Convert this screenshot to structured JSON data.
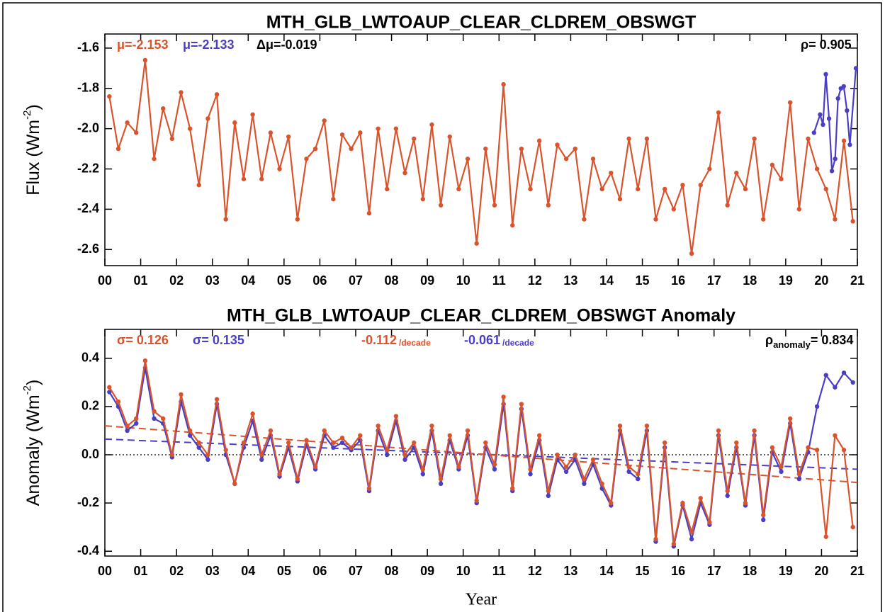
{
  "chart_data": [
    {
      "type": "line",
      "title": "MTH_GLB_LWTOAUP_CLEAR_CLDREM_OBSWGT",
      "ylabel": {
        "text": "Flux (Wm",
        "sup": "-2",
        "end": ")"
      },
      "xlim": [
        0,
        21
      ],
      "ylim": [
        -2.68,
        -1.53
      ],
      "xticks": [
        {
          "value": 0,
          "label": "00"
        },
        {
          "value": 1,
          "label": "01"
        },
        {
          "value": 2,
          "label": "02"
        },
        {
          "value": 3,
          "label": "03"
        },
        {
          "value": 4,
          "label": "04"
        },
        {
          "value": 5,
          "label": "05"
        },
        {
          "value": 6,
          "label": "06"
        },
        {
          "value": 7,
          "label": "07"
        },
        {
          "value": 8,
          "label": "08"
        },
        {
          "value": 9,
          "label": "09"
        },
        {
          "value": 10,
          "label": "10"
        },
        {
          "value": 11,
          "label": "11"
        },
        {
          "value": 12,
          "label": "12"
        },
        {
          "value": 13,
          "label": "13"
        },
        {
          "value": 14,
          "label": "14"
        },
        {
          "value": 15,
          "label": "15"
        },
        {
          "value": 16,
          "label": "16"
        },
        {
          "value": 17,
          "label": "17"
        },
        {
          "value": 18,
          "label": "18"
        },
        {
          "value": 19,
          "label": "19"
        },
        {
          "value": 20,
          "label": "20"
        },
        {
          "value": 21,
          "label": "21"
        }
      ],
      "yticks": [
        -2.6,
        -2.4,
        -2.2,
        {
          "value": -2.0,
          "label": "-2.0"
        },
        -1.8,
        -1.6
      ],
      "annotations": [
        {
          "text": "μ=-2.153",
          "color": "#d9542c"
        },
        {
          "text": "μ=-2.133",
          "color": "#4a3fc4"
        },
        {
          "text": "Δμ=-0.019",
          "color": "#000000"
        },
        {
          "text": "ρ= 0.905",
          "color": "#000000"
        }
      ],
      "series": [
        {
          "color": "#4a3fc4",
          "markers": true,
          "x": [
            19.79,
            19.96,
            20.04,
            20.12,
            20.21,
            20.29,
            20.38,
            20.46,
            20.54,
            20.62,
            20.71,
            20.79,
            20.96
          ],
          "values": [
            -2.02,
            -1.93,
            -1.98,
            -1.73,
            -1.95,
            -2.21,
            -2.15,
            -1.85,
            -1.8,
            -1.79,
            -1.91,
            -2.08,
            -1.7
          ]
        },
        {
          "color": "#d9542c",
          "markers": true,
          "x": [
            0.125,
            0.375,
            0.625,
            0.875,
            1.125,
            1.375,
            1.625,
            1.875,
            2.125,
            2.375,
            2.625,
            2.875,
            3.125,
            3.375,
            3.625,
            3.875,
            4.125,
            4.375,
            4.625,
            4.875,
            5.125,
            5.375,
            5.625,
            5.875,
            6.125,
            6.375,
            6.625,
            6.875,
            7.125,
            7.375,
            7.625,
            7.875,
            8.125,
            8.375,
            8.625,
            8.875,
            9.125,
            9.375,
            9.625,
            9.875,
            10.125,
            10.375,
            10.625,
            10.875,
            11.125,
            11.375,
            11.625,
            11.875,
            12.125,
            12.375,
            12.625,
            12.875,
            13.125,
            13.375,
            13.625,
            13.875,
            14.125,
            14.375,
            14.625,
            14.875,
            15.125,
            15.375,
            15.625,
            15.875,
            16.125,
            16.375,
            16.625,
            16.875,
            17.125,
            17.375,
            17.625,
            17.875,
            18.125,
            18.375,
            18.625,
            18.875,
            19.125,
            19.375,
            19.625,
            19.875,
            20.125,
            20.375,
            20.625,
            20.875
          ],
          "values": [
            -1.84,
            -2.1,
            -1.97,
            -2.02,
            -1.66,
            -2.15,
            -1.9,
            -2.05,
            -1.82,
            -2.0,
            -2.28,
            -1.95,
            -1.83,
            -2.45,
            -1.97,
            -2.25,
            -1.93,
            -2.25,
            -2.02,
            -2.2,
            -2.04,
            -2.45,
            -2.15,
            -2.1,
            -1.96,
            -2.35,
            -2.03,
            -2.1,
            -2.02,
            -2.42,
            -2.0,
            -2.3,
            -2.0,
            -2.22,
            -2.05,
            -2.35,
            -1.98,
            -2.38,
            -2.04,
            -2.3,
            -2.15,
            -2.57,
            -2.1,
            -2.38,
            -1.78,
            -2.48,
            -2.1,
            -2.3,
            -2.06,
            -2.38,
            -2.08,
            -2.15,
            -2.1,
            -2.45,
            -2.15,
            -2.3,
            -2.22,
            -2.35,
            -2.05,
            -2.3,
            -2.05,
            -2.45,
            -2.3,
            -2.4,
            -2.28,
            -2.62,
            -2.28,
            -2.2,
            -1.92,
            -2.38,
            -2.22,
            -2.3,
            -2.05,
            -2.45,
            -2.18,
            -2.25,
            -1.87,
            -2.4,
            -2.05,
            -2.2,
            -2.3,
            -2.45,
            -2.06,
            -2.46
          ]
        }
      ]
    },
    {
      "type": "line",
      "title": "MTH_GLB_LWTOAUP_CLEAR_CLDREM_OBSWGT Anomaly",
      "ylabel": {
        "text": "Anomaly (Wm",
        "sup": "-2",
        "end": ")"
      },
      "xlabel": "Year",
      "zero_line": true,
      "xlim": [
        0,
        21
      ],
      "ylim": [
        -0.42,
        0.52
      ],
      "xticks": [
        {
          "value": 0,
          "label": "00"
        },
        {
          "value": 1,
          "label": "01"
        },
        {
          "value": 2,
          "label": "02"
        },
        {
          "value": 3,
          "label": "03"
        },
        {
          "value": 4,
          "label": "04"
        },
        {
          "value": 5,
          "label": "05"
        },
        {
          "value": 6,
          "label": "06"
        },
        {
          "value": 7,
          "label": "07"
        },
        {
          "value": 8,
          "label": "08"
        },
        {
          "value": 9,
          "label": "09"
        },
        {
          "value": 10,
          "label": "10"
        },
        {
          "value": 11,
          "label": "11"
        },
        {
          "value": 12,
          "label": "12"
        },
        {
          "value": 13,
          "label": "13"
        },
        {
          "value": 14,
          "label": "14"
        },
        {
          "value": 15,
          "label": "15"
        },
        {
          "value": 16,
          "label": "16"
        },
        {
          "value": 17,
          "label": "17"
        },
        {
          "value": 18,
          "label": "18"
        },
        {
          "value": 19,
          "label": "19"
        },
        {
          "value": 20,
          "label": "20"
        },
        {
          "value": 21,
          "label": "21"
        }
      ],
      "yticks": [
        -0.4,
        -0.2,
        {
          "value": 0,
          "label": "0.0"
        },
        0.2,
        0.4
      ],
      "annotations": [
        {
          "text": "σ= 0.126",
          "color": "#d9542c"
        },
        {
          "text": "σ= 0.135",
          "color": "#4a3fc4"
        },
        {
          "text": "-0.112",
          "small": "/decade",
          "color": "#d9542c"
        },
        {
          "text": "-0.061",
          "small": "/decade",
          "color": "#4a3fc4"
        },
        {
          "text": "ρ",
          "sub": "anomaly",
          "text2": "= 0.834",
          "color": "#000000"
        }
      ],
      "series": [
        {
          "color": "#4a3fc4",
          "dashed": true,
          "x": [
            0,
            21
          ],
          "values": [
            0.065,
            -0.06
          ]
        },
        {
          "color": "#d9542c",
          "dashed": true,
          "x": [
            0,
            21
          ],
          "values": [
            0.12,
            -0.115
          ]
        },
        {
          "color": "#4a3fc4",
          "markers": true,
          "x": [
            0.125,
            0.375,
            0.625,
            0.875,
            1.125,
            1.375,
            1.625,
            1.875,
            2.125,
            2.375,
            2.625,
            2.875,
            3.125,
            3.375,
            3.625,
            3.875,
            4.125,
            4.375,
            4.625,
            4.875,
            5.125,
            5.375,
            5.625,
            5.875,
            6.125,
            6.375,
            6.625,
            6.875,
            7.125,
            7.375,
            7.625,
            7.875,
            8.125,
            8.375,
            8.625,
            8.875,
            9.125,
            9.375,
            9.625,
            9.875,
            10.125,
            10.375,
            10.625,
            10.875,
            11.125,
            11.375,
            11.625,
            11.875,
            12.125,
            12.375,
            12.625,
            12.875,
            13.125,
            13.375,
            13.625,
            13.875,
            14.125,
            14.375,
            14.625,
            14.875,
            15.125,
            15.375,
            15.625,
            15.875,
            16.125,
            16.375,
            16.625,
            16.875,
            17.125,
            17.375,
            17.625,
            17.875,
            18.125,
            18.375,
            18.625,
            18.875,
            19.125,
            19.375,
            19.625,
            19.875,
            20.125,
            20.375,
            20.625,
            20.875
          ],
          "values": [
            0.26,
            0.2,
            0.1,
            0.13,
            0.36,
            0.15,
            0.13,
            -0.01,
            0.22,
            0.08,
            0.03,
            -0.02,
            0.21,
            0.0,
            -0.12,
            0.03,
            0.14,
            -0.02,
            0.08,
            -0.09,
            0.03,
            -0.11,
            0.04,
            -0.06,
            0.08,
            0.03,
            0.05,
            0.02,
            0.06,
            -0.15,
            0.1,
            0.0,
            0.14,
            -0.02,
            0.03,
            -0.08,
            0.1,
            -0.12,
            0.06,
            -0.06,
            0.08,
            -0.2,
            0.03,
            -0.06,
            0.21,
            -0.15,
            0.19,
            -0.08,
            0.06,
            -0.17,
            -0.02,
            -0.07,
            -0.02,
            -0.12,
            -0.04,
            -0.14,
            -0.21,
            0.1,
            -0.07,
            -0.1,
            0.1,
            -0.36,
            0.03,
            -0.38,
            -0.21,
            -0.35,
            -0.2,
            -0.29,
            0.08,
            -0.17,
            0.03,
            -0.21,
            0.08,
            -0.27,
            0.01,
            -0.07,
            0.13,
            -0.1,
            0.01,
            0.2,
            0.33,
            0.28,
            0.34,
            0.3
          ]
        },
        {
          "color": "#d9542c",
          "markers": true,
          "x": [
            0.125,
            0.375,
            0.625,
            0.875,
            1.125,
            1.375,
            1.625,
            1.875,
            2.125,
            2.375,
            2.625,
            2.875,
            3.125,
            3.375,
            3.625,
            3.875,
            4.125,
            4.375,
            4.625,
            4.875,
            5.125,
            5.375,
            5.625,
            5.875,
            6.125,
            6.375,
            6.625,
            6.875,
            7.125,
            7.375,
            7.625,
            7.875,
            8.125,
            8.375,
            8.625,
            8.875,
            9.125,
            9.375,
            9.625,
            9.875,
            10.125,
            10.375,
            10.625,
            10.875,
            11.125,
            11.375,
            11.625,
            11.875,
            12.125,
            12.375,
            12.625,
            12.875,
            13.125,
            13.375,
            13.625,
            13.875,
            14.125,
            14.375,
            14.625,
            14.875,
            15.125,
            15.375,
            15.625,
            15.875,
            16.125,
            16.375,
            16.625,
            16.875,
            17.125,
            17.375,
            17.625,
            17.875,
            18.125,
            18.375,
            18.625,
            18.875,
            19.125,
            19.375,
            19.625,
            19.875,
            20.125,
            20.375,
            20.625,
            20.875
          ],
          "values": [
            0.28,
            0.22,
            0.12,
            0.15,
            0.39,
            0.18,
            0.15,
            0.0,
            0.25,
            0.1,
            0.05,
            0.0,
            0.23,
            0.02,
            -0.12,
            0.05,
            0.17,
            0.0,
            0.1,
            -0.08,
            0.05,
            -0.1,
            0.06,
            -0.05,
            0.1,
            0.05,
            0.07,
            0.03,
            0.08,
            -0.14,
            0.12,
            0.02,
            0.16,
            0.0,
            0.05,
            -0.06,
            0.12,
            -0.1,
            0.08,
            -0.05,
            0.1,
            -0.19,
            0.05,
            -0.04,
            0.24,
            -0.14,
            0.21,
            -0.06,
            0.08,
            -0.15,
            0.0,
            -0.05,
            0.0,
            -0.1,
            -0.02,
            -0.12,
            -0.2,
            0.12,
            -0.05,
            -0.08,
            0.12,
            -0.35,
            0.05,
            -0.37,
            -0.2,
            -0.32,
            -0.18,
            -0.28,
            0.1,
            -0.15,
            0.05,
            -0.2,
            0.1,
            -0.25,
            0.03,
            -0.05,
            0.15,
            -0.08,
            0.03,
            0.02,
            -0.34,
            0.08,
            0.02,
            -0.3
          ]
        }
      ]
    }
  ]
}
